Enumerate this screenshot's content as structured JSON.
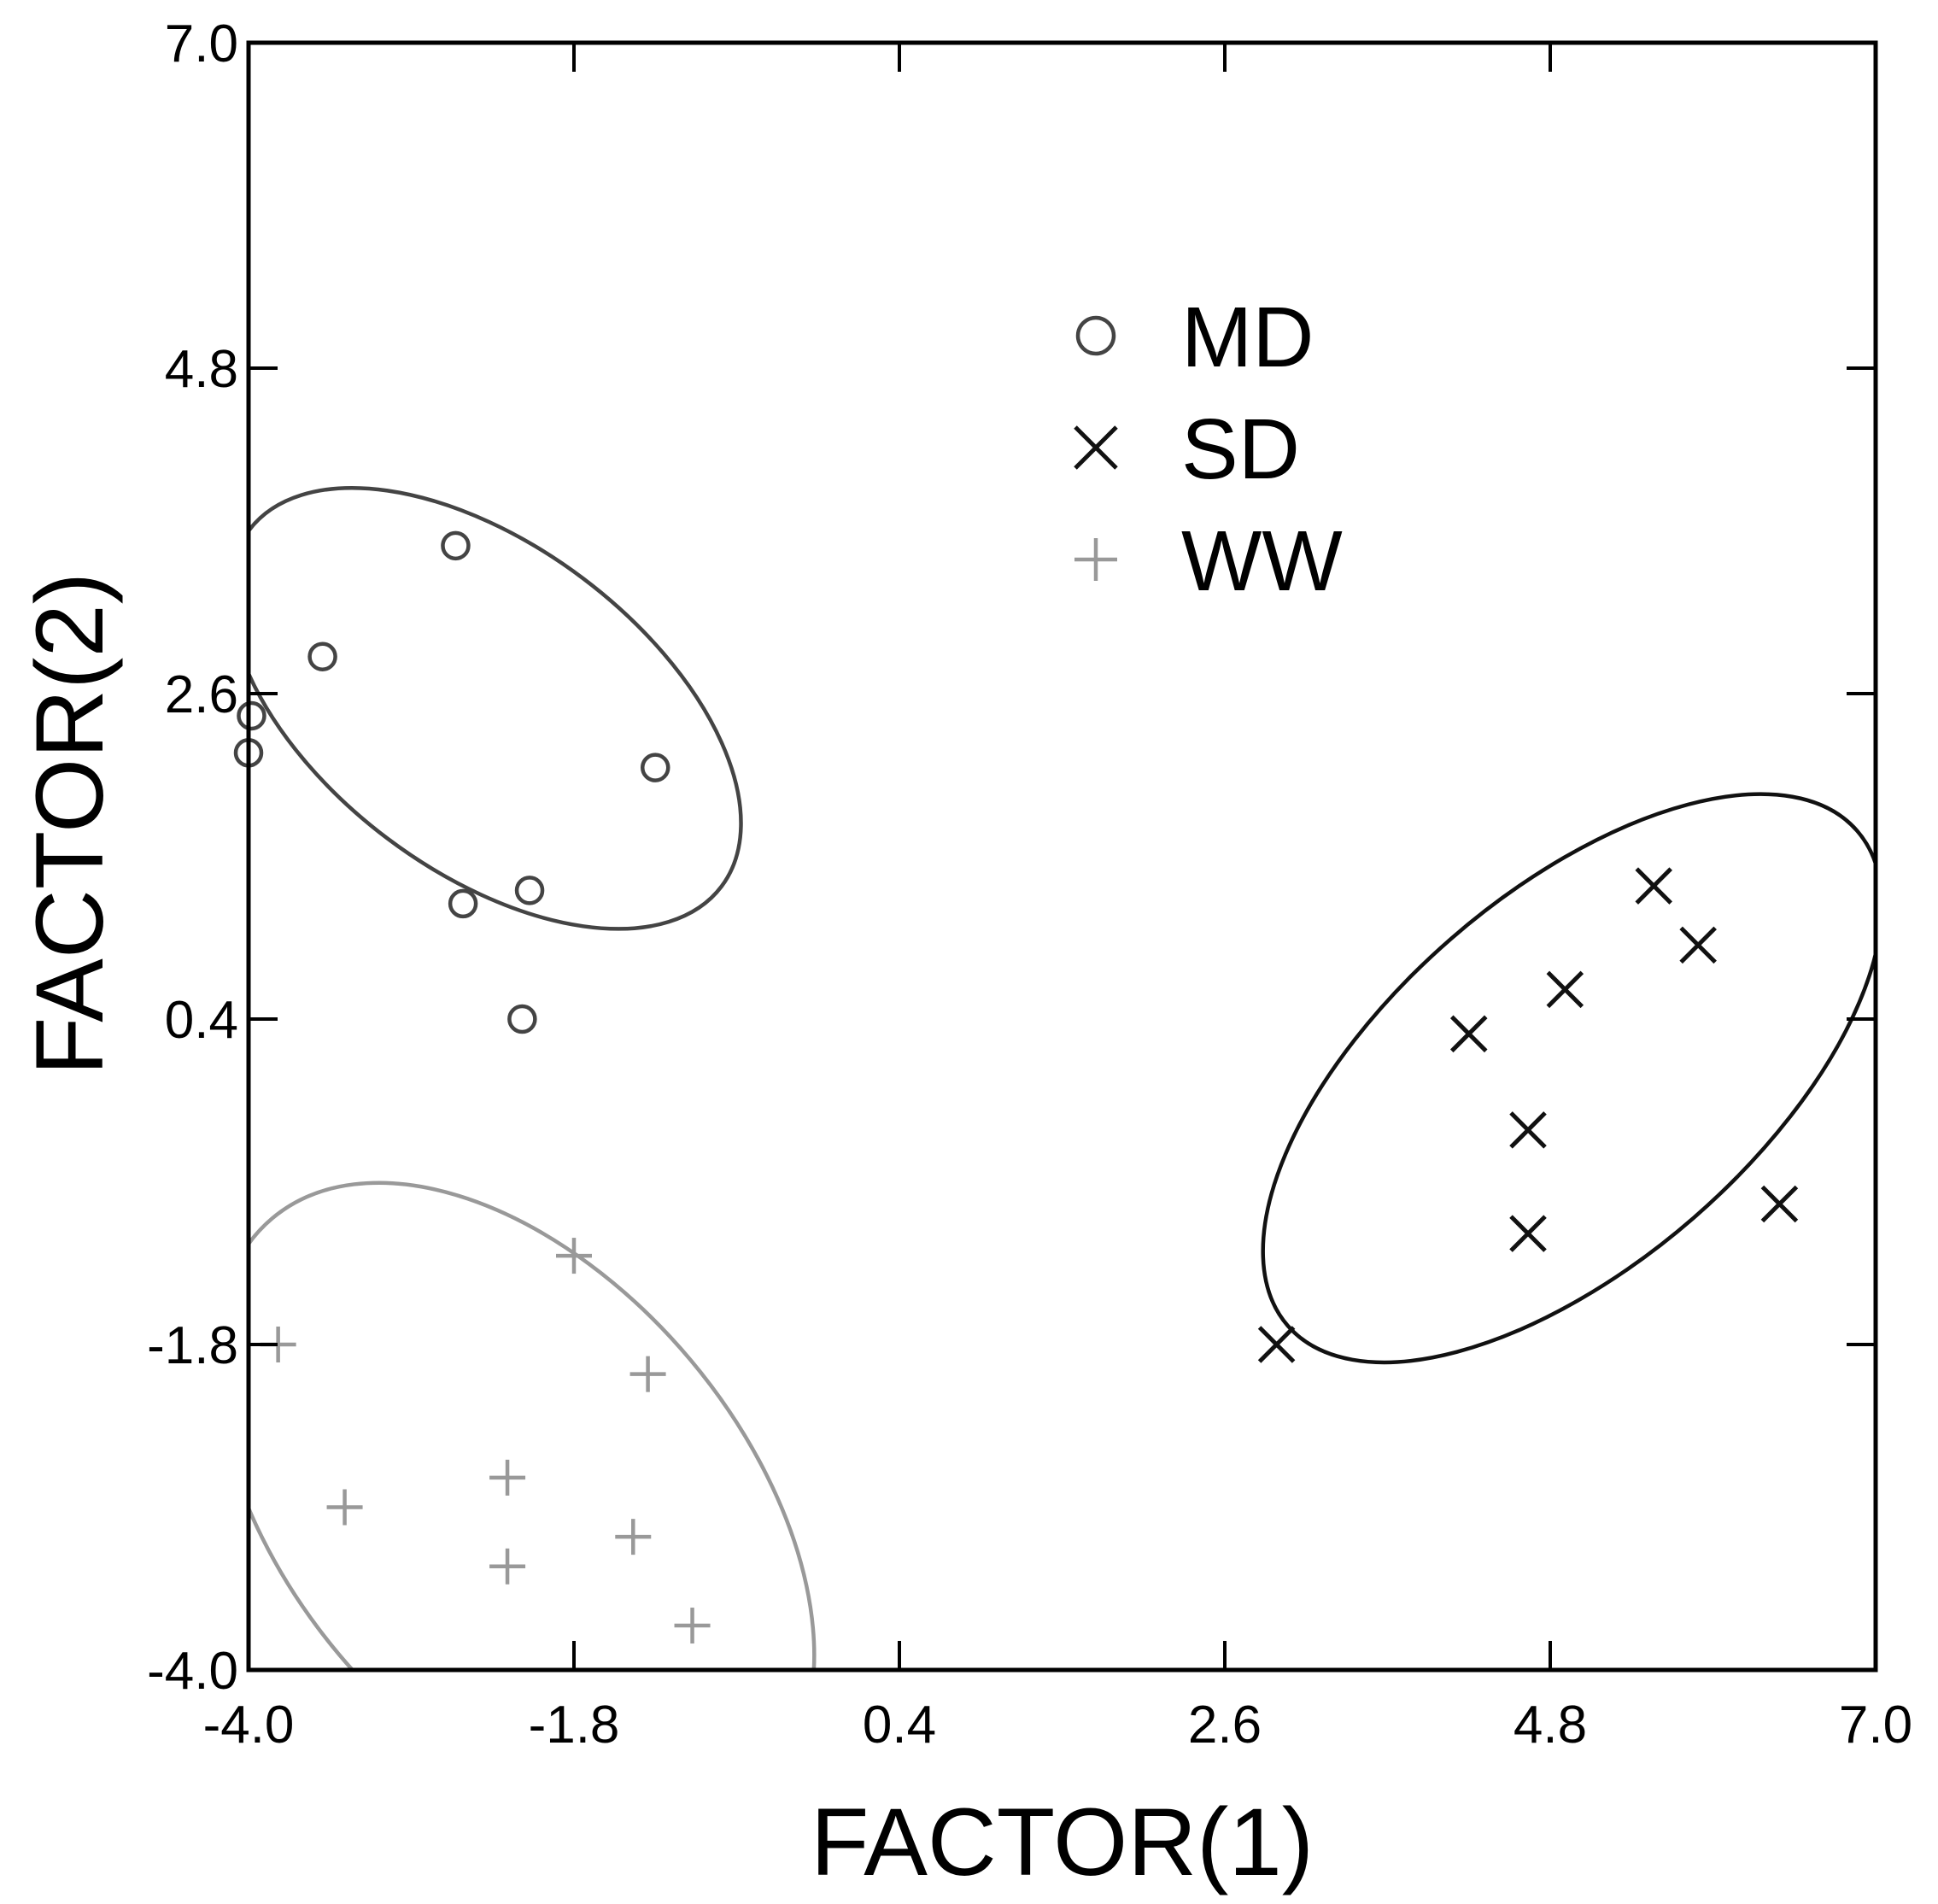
{
  "chart_data": {
    "type": "scatter",
    "xlabel": "FACTOR(1)",
    "ylabel": "FACTOR(2)",
    "xlim": [
      -4.0,
      7.0
    ],
    "ylim": [
      -4.0,
      7.0
    ],
    "xticks": [
      "-4.0",
      "-1.8",
      "0.4",
      "2.6",
      "4.8",
      "7.0"
    ],
    "yticks": [
      "-4.0",
      "-1.8",
      "0.4",
      "2.6",
      "4.8",
      "7.0"
    ],
    "grid": false,
    "legend_position": "upper-center",
    "series": [
      {
        "name": "MD",
        "marker": "circle",
        "color": "#444444",
        "points": [
          [
            -2.6,
            3.6
          ],
          [
            -3.5,
            2.85
          ],
          [
            -3.98,
            2.45
          ],
          [
            -4.0,
            2.2
          ],
          [
            -1.25,
            2.1
          ],
          [
            -2.1,
            1.27
          ],
          [
            -2.55,
            1.18
          ],
          [
            -2.15,
            0.4
          ]
        ]
      },
      {
        "name": "SD",
        "marker": "x",
        "color": "#111111",
        "points": [
          [
            5.5,
            1.3
          ],
          [
            5.8,
            0.9
          ],
          [
            4.9,
            0.6
          ],
          [
            4.25,
            0.3
          ],
          [
            4.65,
            -0.35
          ],
          [
            6.35,
            -0.85
          ],
          [
            4.65,
            -1.05
          ],
          [
            2.95,
            -1.8
          ]
        ]
      },
      {
        "name": "WW",
        "marker": "plus",
        "color": "#999999",
        "points": [
          [
            -1.8,
            -1.2
          ],
          [
            -3.8,
            -1.8
          ],
          [
            -1.3,
            -2.0
          ],
          [
            -2.25,
            -2.7
          ],
          [
            -3.35,
            -2.9
          ],
          [
            -1.4,
            -3.1
          ],
          [
            -2.25,
            -3.3
          ],
          [
            -1.0,
            -3.7
          ]
        ]
      }
    ],
    "ellipses": [
      {
        "series": "MD",
        "color": "#444444",
        "cx": -2.4,
        "cy": 2.5,
        "rx": 2.0,
        "ry": 1.1,
        "angle_deg": -37
      },
      {
        "series": "SD",
        "color": "#111111",
        "cx": 4.95,
        "cy": 0.0,
        "rx": 2.55,
        "ry": 1.25,
        "angle_deg": 41
      },
      {
        "series": "WW",
        "color": "#999999",
        "cx": -2.2,
        "cy": -2.9,
        "rx": 2.55,
        "ry": 1.55,
        "angle_deg": -50
      }
    ]
  }
}
